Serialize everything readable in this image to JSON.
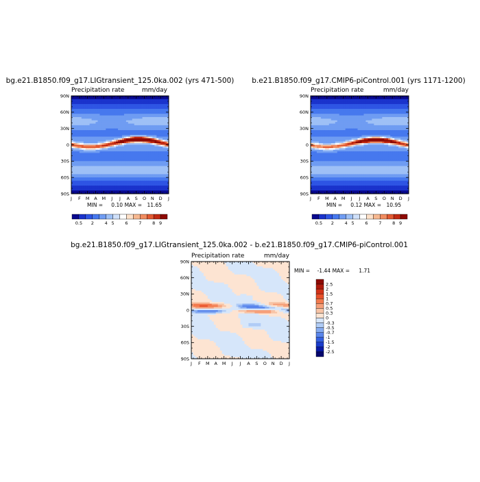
{
  "chart_data": [
    {
      "type": "heatmap",
      "title": "bg.e21.B1850.f09_g17.LIGtransient_125.0ka.002 (yrs 471-500)",
      "variable_label": "Precipitation rate",
      "units": "mm/day",
      "x_ticks": [
        "J",
        "F",
        "M",
        "A",
        "M",
        "J",
        "J",
        "A",
        "S",
        "O",
        "N",
        "D",
        "J"
      ],
      "y_ticks": [
        "90N",
        "60N",
        "30N",
        "0",
        "30S",
        "60S",
        "90S"
      ],
      "min_label": "MIN =",
      "min_value": "0.10",
      "max_label": "MAX =",
      "max_value": "11.65",
      "colorbar_labels": [
        "0.5",
        "2",
        "4",
        "5",
        "6",
        "7",
        "8",
        "9"
      ],
      "colorbar_colors": [
        "#08088e",
        "#1a33cc",
        "#2e55e4",
        "#4678ee",
        "#6f9cf2",
        "#9ec0f6",
        "#cfe0fa",
        "#ffffff",
        "#fde0c8",
        "#f7b890",
        "#f08c60",
        "#e25a32",
        "#c22a12",
        "#8e0a04"
      ],
      "field": {
        "itcz_peak_lat": 10,
        "itcz_trough_lat": -4,
        "itcz_peak_month": 8.3,
        "itcz_peak_value": 11.65,
        "base_value": 3.5,
        "polar_value": 0.4
      }
    },
    {
      "type": "heatmap",
      "title": "b.e21.B1850.f09_g17.CMIP6-piControl.001 (yrs 1171-1200)",
      "variable_label": "Precipitation rate",
      "units": "mm/day",
      "x_ticks": [
        "J",
        "F",
        "M",
        "A",
        "M",
        "J",
        "J",
        "A",
        "S",
        "O",
        "N",
        "D",
        "J"
      ],
      "y_ticks": [
        "90N",
        "60N",
        "30N",
        "0",
        "30S",
        "60S",
        "90S"
      ],
      "min_label": "MIN =",
      "min_value": "0.12",
      "max_label": "MAX =",
      "max_value": "10.95",
      "colorbar_labels": [
        "0.5",
        "2",
        "4",
        "5",
        "6",
        "7",
        "8",
        "9"
      ],
      "colorbar_colors": [
        "#08088e",
        "#1a33cc",
        "#2e55e4",
        "#4678ee",
        "#6f9cf2",
        "#9ec0f6",
        "#cfe0fa",
        "#ffffff",
        "#fde0c8",
        "#f7b890",
        "#f08c60",
        "#e25a32",
        "#c22a12",
        "#8e0a04"
      ],
      "field": {
        "itcz_peak_lat": 9,
        "itcz_trough_lat": -4,
        "itcz_peak_month": 8.0,
        "itcz_peak_value": 10.95,
        "base_value": 3.5,
        "polar_value": 0.4
      }
    },
    {
      "type": "heatmap",
      "title": "bg.e21.B1850.f09_g17.LIGtransient_125.0ka.002 - b.e21.B1850.f09_g17.CMIP6-piControl.001",
      "variable_label": "Precipitation rate",
      "units": "mm/day",
      "x_ticks": [
        "J",
        "F",
        "M",
        "A",
        "M",
        "J",
        "J",
        "A",
        "S",
        "O",
        "N",
        "D",
        "J"
      ],
      "y_ticks": [
        "90N",
        "60N",
        "30N",
        "0",
        "30S",
        "60S",
        "90S"
      ],
      "min_label": "MIN =",
      "min_value": "-1.44",
      "max_label": "MAX =",
      "max_value": "1.71",
      "colorbar_labels": [
        "2.5",
        "2",
        "1.5",
        "1",
        "0.7",
        "0.5",
        "0.3",
        "0",
        "-0.3",
        "-0.5",
        "-0.7",
        "-1",
        "-1.5",
        "-2",
        "-2.5"
      ],
      "colorbar_colors": [
        "#8e0a04",
        "#b01a0c",
        "#d23218",
        "#e8502a",
        "#f27a4e",
        "#f6a07a",
        "#f8c4a6",
        "#fde4d2",
        "#d6e6fa",
        "#b0ccf6",
        "#86acf2",
        "#5a86ec",
        "#3460e0",
        "#1a3ccc",
        "#0a1aa6",
        "#06066e"
      ],
      "field": {
        "min": -1.44,
        "max": 1.71
      }
    }
  ]
}
